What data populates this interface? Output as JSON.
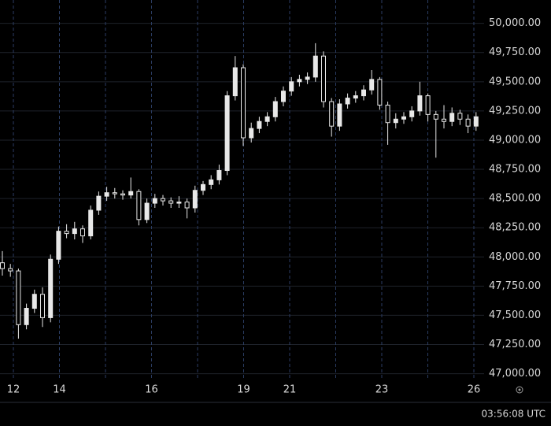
{
  "chart_data": {
    "type": "candlestick",
    "color": "#e8e8e8",
    "categories": [
      "12",
      "14",
      null,
      "16",
      null,
      "19",
      "21",
      null,
      "23",
      null,
      "26"
    ],
    "open": [
      47950,
      47900,
      47880,
      47420,
      47560,
      47680,
      47480,
      47980,
      48220,
      48200,
      48240,
      48180,
      48400,
      48520,
      48550,
      48540,
      48530,
      48560,
      48320,
      48460,
      48500,
      48480,
      48460,
      48470,
      48420,
      48570,
      48620,
      48660,
      48740,
      49380,
      49620,
      49020,
      49100,
      49160,
      49200,
      49330,
      49420,
      49500,
      49520,
      49540,
      49720,
      49330,
      49120,
      49310,
      49360,
      49380,
      49430,
      49520,
      49300,
      49150,
      49180,
      49200,
      49250,
      49380,
      49220,
      49180,
      49160,
      49230,
      49180,
      49120
    ],
    "high": [
      48050,
      47940,
      47900,
      47600,
      47720,
      47740,
      48020,
      48260,
      48280,
      48300,
      48270,
      48440,
      48560,
      48600,
      48590,
      48570,
      48680,
      48580,
      48500,
      48540,
      48530,
      48510,
      48520,
      48500,
      48610,
      48650,
      48700,
      48790,
      49420,
      49720,
      49650,
      49150,
      49200,
      49240,
      49370,
      49460,
      49540,
      49560,
      49580,
      49830,
      49760,
      49360,
      49350,
      49400,
      49420,
      49470,
      49600,
      49540,
      49330,
      49230,
      49240,
      49290,
      49500,
      49400,
      49250,
      49300,
      49280,
      49260,
      49220,
      49240
    ],
    "low": [
      47840,
      47830,
      47300,
      47380,
      47520,
      47400,
      47440,
      47940,
      48160,
      48150,
      48120,
      48150,
      48360,
      48480,
      48500,
      48490,
      48500,
      48270,
      48290,
      48420,
      48440,
      48420,
      48420,
      48330,
      48380,
      48530,
      48580,
      48620,
      48700,
      49340,
      48950,
      48980,
      49060,
      49120,
      49160,
      49290,
      49380,
      49460,
      49480,
      49500,
      49280,
      49030,
      49080,
      49270,
      49320,
      49340,
      49390,
      49260,
      48960,
      49100,
      49140,
      49160,
      49210,
      49160,
      48850,
      49100,
      49120,
      49130,
      49060,
      49080
    ],
    "close": [
      47900,
      47880,
      47420,
      47560,
      47680,
      47480,
      47980,
      48220,
      48200,
      48240,
      48180,
      48400,
      48520,
      48550,
      48540,
      48530,
      48560,
      48320,
      48460,
      48500,
      48480,
      48460,
      48470,
      48420,
      48570,
      48620,
      48660,
      48740,
      49380,
      49620,
      49020,
      49100,
      49160,
      49200,
      49330,
      49420,
      49500,
      49520,
      49540,
      49720,
      49330,
      49120,
      49310,
      49360,
      49380,
      49430,
      49520,
      49300,
      49150,
      49180,
      49200,
      49250,
      49380,
      49220,
      49180,
      49160,
      49230,
      49180,
      49120,
      49200
    ],
    "ylim": [
      46950,
      50200
    ],
    "yticks": [
      {
        "value": 47000,
        "label": "47,000.00"
      },
      {
        "value": 47250,
        "label": "47,250.00"
      },
      {
        "value": 47500,
        "label": "47,500.00"
      },
      {
        "value": 47750,
        "label": "47,750.00"
      },
      {
        "value": 48000,
        "label": "48,000.00"
      },
      {
        "value": 48250,
        "label": "48,250.00"
      },
      {
        "value": 48500,
        "label": "48,500.00"
      },
      {
        "value": 48750,
        "label": "48,750.00"
      },
      {
        "value": 49000,
        "label": "49,000.00"
      },
      {
        "value": 49250,
        "label": "49,250.00"
      },
      {
        "value": 49500,
        "label": "49,500.00"
      },
      {
        "value": 49750,
        "label": "49,750.00"
      },
      {
        "value": 50000,
        "label": "50,000.00"
      }
    ],
    "grid": true,
    "time_label": "03:56:08 UTC"
  }
}
